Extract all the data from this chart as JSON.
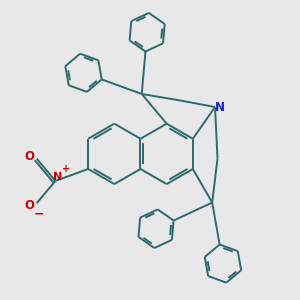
{
  "bg_color": "#e8e8e8",
  "bond_color": "#2d6b6b",
  "N_color": "#1a1acc",
  "NO2_N_color": "#cc0000",
  "NO2_O_color": "#cc0000",
  "line_width": 1.4,
  "fig_size": [
    3.0,
    3.0
  ],
  "dpi": 100,
  "xlim": [
    -3.5,
    3.5
  ],
  "ylim": [
    -3.8,
    3.8
  ]
}
